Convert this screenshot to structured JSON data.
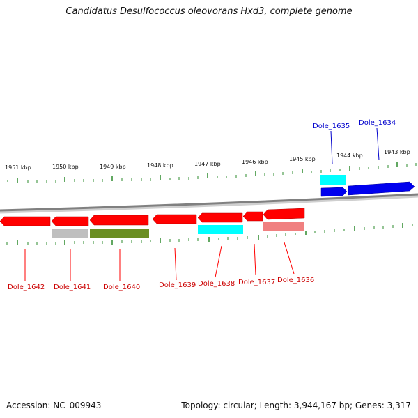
{
  "title": "Candidatus Desulfococcus oleovorans Hxd3, complete genome",
  "accession": "Accession: NC_009943",
  "summary": "Topology: circular; Length: 3,944,167 bp; Genes: 3,317",
  "colors": {
    "backbone": "#808080",
    "tick": "#2e8b2e",
    "red": "#ff0000",
    "blue": "#0000ee",
    "cyan": "#00ffff",
    "gray": "#bfbfbf",
    "olive": "#6b8e23",
    "pink": "#f08080"
  },
  "ticks_top": [
    "1951 kbp",
    "1950 kbp",
    "1949 kbp",
    "1948 kbp",
    "1947 kbp",
    "1946 kbp",
    "1945 kbp",
    "1944 kbp",
    "1943 kbp"
  ],
  "genes": [
    {
      "name": "Dole_1642",
      "strand": "-",
      "color": "red"
    },
    {
      "name": "Dole_1641",
      "strand": "-",
      "color": "red"
    },
    {
      "name": "Dole_1640",
      "strand": "-",
      "color": "red"
    },
    {
      "name": "Dole_1639",
      "strand": "-",
      "color": "red"
    },
    {
      "name": "Dole_1638",
      "strand": "-",
      "color": "red"
    },
    {
      "name": "Dole_1637",
      "strand": "-",
      "color": "red"
    },
    {
      "name": "Dole_1636",
      "strand": "-",
      "color": "red"
    },
    {
      "name": "Dole_1635",
      "strand": "+",
      "color": "blue"
    },
    {
      "name": "Dole_1634",
      "strand": "+",
      "color": "blue"
    }
  ]
}
